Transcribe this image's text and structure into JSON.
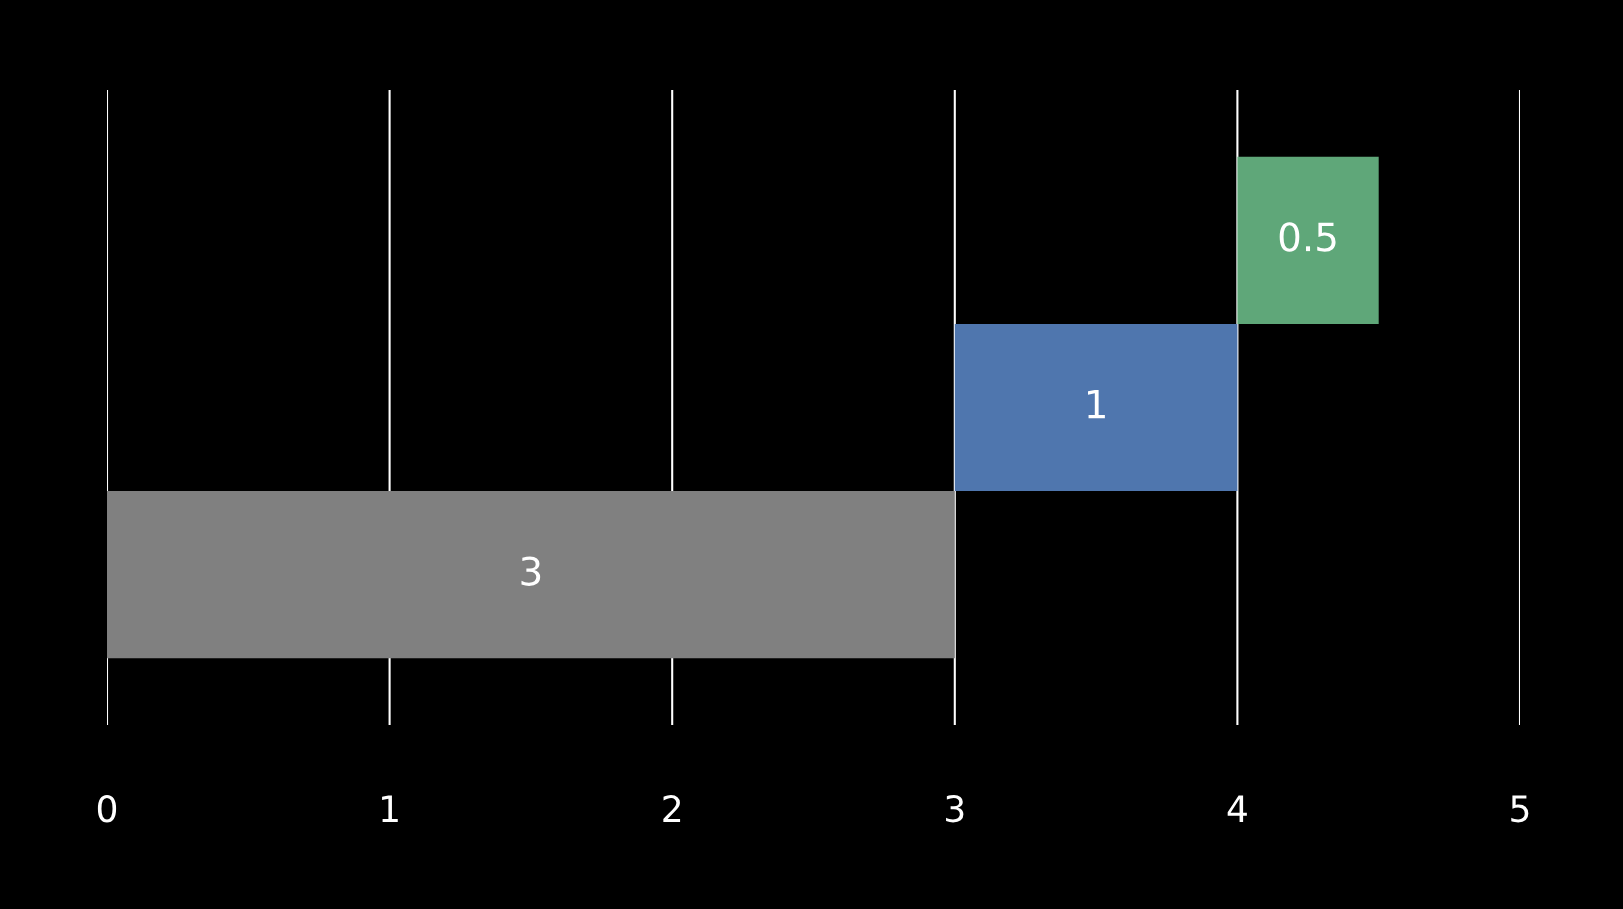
{
  "chart_data": {
    "type": "bar",
    "orientation": "horizontal",
    "categories": [
      null,
      null,
      null
    ],
    "values": [
      0.5,
      1,
      3
    ],
    "base": [
      4,
      3,
      0
    ],
    "colors": [
      "#5fa779",
      "#4f76ae",
      "#808080"
    ],
    "xlim": [
      0,
      5
    ],
    "xticks": [
      0,
      1,
      2,
      3,
      4,
      5
    ],
    "grid": "x",
    "data_labels": true
  }
}
